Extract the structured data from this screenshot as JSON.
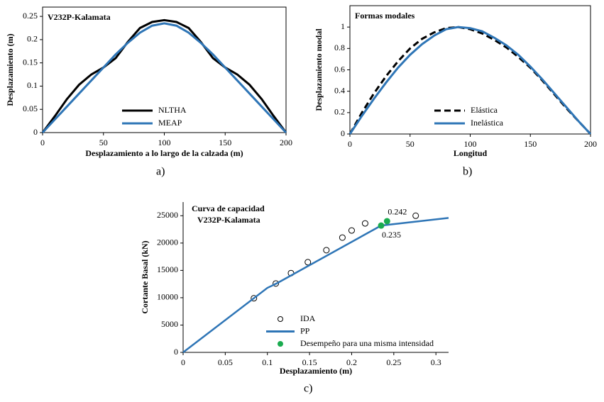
{
  "chart_data": [
    {
      "type": "line",
      "title": "V232P-Kalamata",
      "xlabel": "Desplazamiento a lo largo de la calzada (m)",
      "ylabel": "Desplazamiento (m)",
      "caption": "a)",
      "frame": true,
      "legend": "lower-center",
      "x": [
        0,
        10,
        20,
        30,
        40,
        50,
        60,
        70,
        80,
        90,
        100,
        110,
        120,
        130,
        140,
        150,
        160,
        170,
        180,
        190,
        200
      ],
      "series": [
        {
          "name": "NLTHA",
          "color": "#000000",
          "mode": "line",
          "dash": false,
          "values": [
            0,
            0.035,
            0.072,
            0.103,
            0.125,
            0.14,
            0.16,
            0.195,
            0.225,
            0.238,
            0.242,
            0.238,
            0.225,
            0.195,
            0.16,
            0.14,
            0.125,
            0.103,
            0.072,
            0.035,
            0
          ]
        },
        {
          "name": "MEAP",
          "color": "#2e75b6",
          "mode": "line",
          "dash": false,
          "values": [
            0,
            0.028,
            0.056,
            0.084,
            0.112,
            0.14,
            0.168,
            0.193,
            0.215,
            0.23,
            0.235,
            0.23,
            0.215,
            0.193,
            0.168,
            0.14,
            0.112,
            0.084,
            0.056,
            0.028,
            0
          ]
        }
      ],
      "xlim": [
        0,
        200
      ],
      "xticks": [
        0,
        50,
        100,
        150,
        200
      ],
      "ylim": [
        0,
        0.27
      ],
      "yticks": [
        0,
        0.05,
        0.1,
        0.15,
        0.2,
        0.25
      ]
    },
    {
      "type": "line",
      "title": "Formas modales",
      "xlabel": "Longitud",
      "ylabel": "Desplazamiento modal",
      "caption": "b)",
      "frame": true,
      "legend": "lower-center",
      "x": [
        0,
        10,
        20,
        30,
        40,
        50,
        60,
        70,
        80,
        90,
        100,
        110,
        120,
        130,
        140,
        150,
        160,
        170,
        180,
        190,
        200
      ],
      "series": [
        {
          "name": "Elástica",
          "color": "#000000",
          "mode": "line",
          "dash": true,
          "values": [
            0,
            0.2,
            0.38,
            0.54,
            0.68,
            0.8,
            0.89,
            0.95,
            0.99,
            1.0,
            0.98,
            0.94,
            0.88,
            0.81,
            0.72,
            0.62,
            0.5,
            0.37,
            0.24,
            0.12,
            0
          ]
        },
        {
          "name": "Inelástica",
          "color": "#2e75b6",
          "mode": "line",
          "dash": false,
          "values": [
            0,
            0.17,
            0.33,
            0.48,
            0.62,
            0.74,
            0.84,
            0.92,
            0.98,
            1.0,
            0.99,
            0.96,
            0.9,
            0.83,
            0.74,
            0.63,
            0.51,
            0.38,
            0.25,
            0.12,
            0
          ]
        }
      ],
      "xlim": [
        0,
        200
      ],
      "xticks": [
        0,
        50,
        100,
        150,
        200
      ],
      "ylim": [
        0,
        1.2
      ],
      "yticks": [
        0,
        0.2,
        0.4,
        0.6,
        0.8,
        1
      ]
    },
    {
      "type": "scatter",
      "title": "Curva de capacidad",
      "subtitle": "V232P-Kalamata",
      "xlabel": "Desplazamiento (m)",
      "ylabel": "Cortante Basal (kN)",
      "caption": "c)",
      "frame": false,
      "legend": "lower-center",
      "series": [
        {
          "name": "IDA",
          "color": "#000000",
          "mode": "markers",
          "marker": "open-circle",
          "x": [
            0.084,
            0.11,
            0.128,
            0.148,
            0.17,
            0.189,
            0.2,
            0.216,
            0.276
          ],
          "values": [
            9900,
            12600,
            14500,
            16500,
            18700,
            21000,
            22300,
            23600,
            25000
          ]
        },
        {
          "name": "PP",
          "color": "#2e75b6",
          "mode": "line",
          "dash": false,
          "x": [
            0,
            0.1,
            0.112,
            0.235,
            0.315
          ],
          "values": [
            0,
            11800,
            12700,
            23200,
            24600
          ]
        },
        {
          "name": "Desempeño para una misma intensidad",
          "color": "#1aab4f",
          "mode": "markers",
          "marker": "filled-circle",
          "x": [
            0.235,
            0.242
          ],
          "values": [
            23200,
            24000
          ]
        }
      ],
      "annotations": [
        {
          "text": "0.242",
          "x": 0.242,
          "y": 24000
        },
        {
          "text": "0.235",
          "x": 0.235,
          "y": 23200
        }
      ],
      "xlim": [
        0,
        0.315
      ],
      "xticks": [
        0,
        0.05,
        0.1,
        0.15,
        0.2,
        0.25,
        0.3
      ],
      "ylim": [
        0,
        27500
      ],
      "yticks": [
        0,
        5000,
        10000,
        15000,
        20000,
        25000
      ]
    }
  ]
}
